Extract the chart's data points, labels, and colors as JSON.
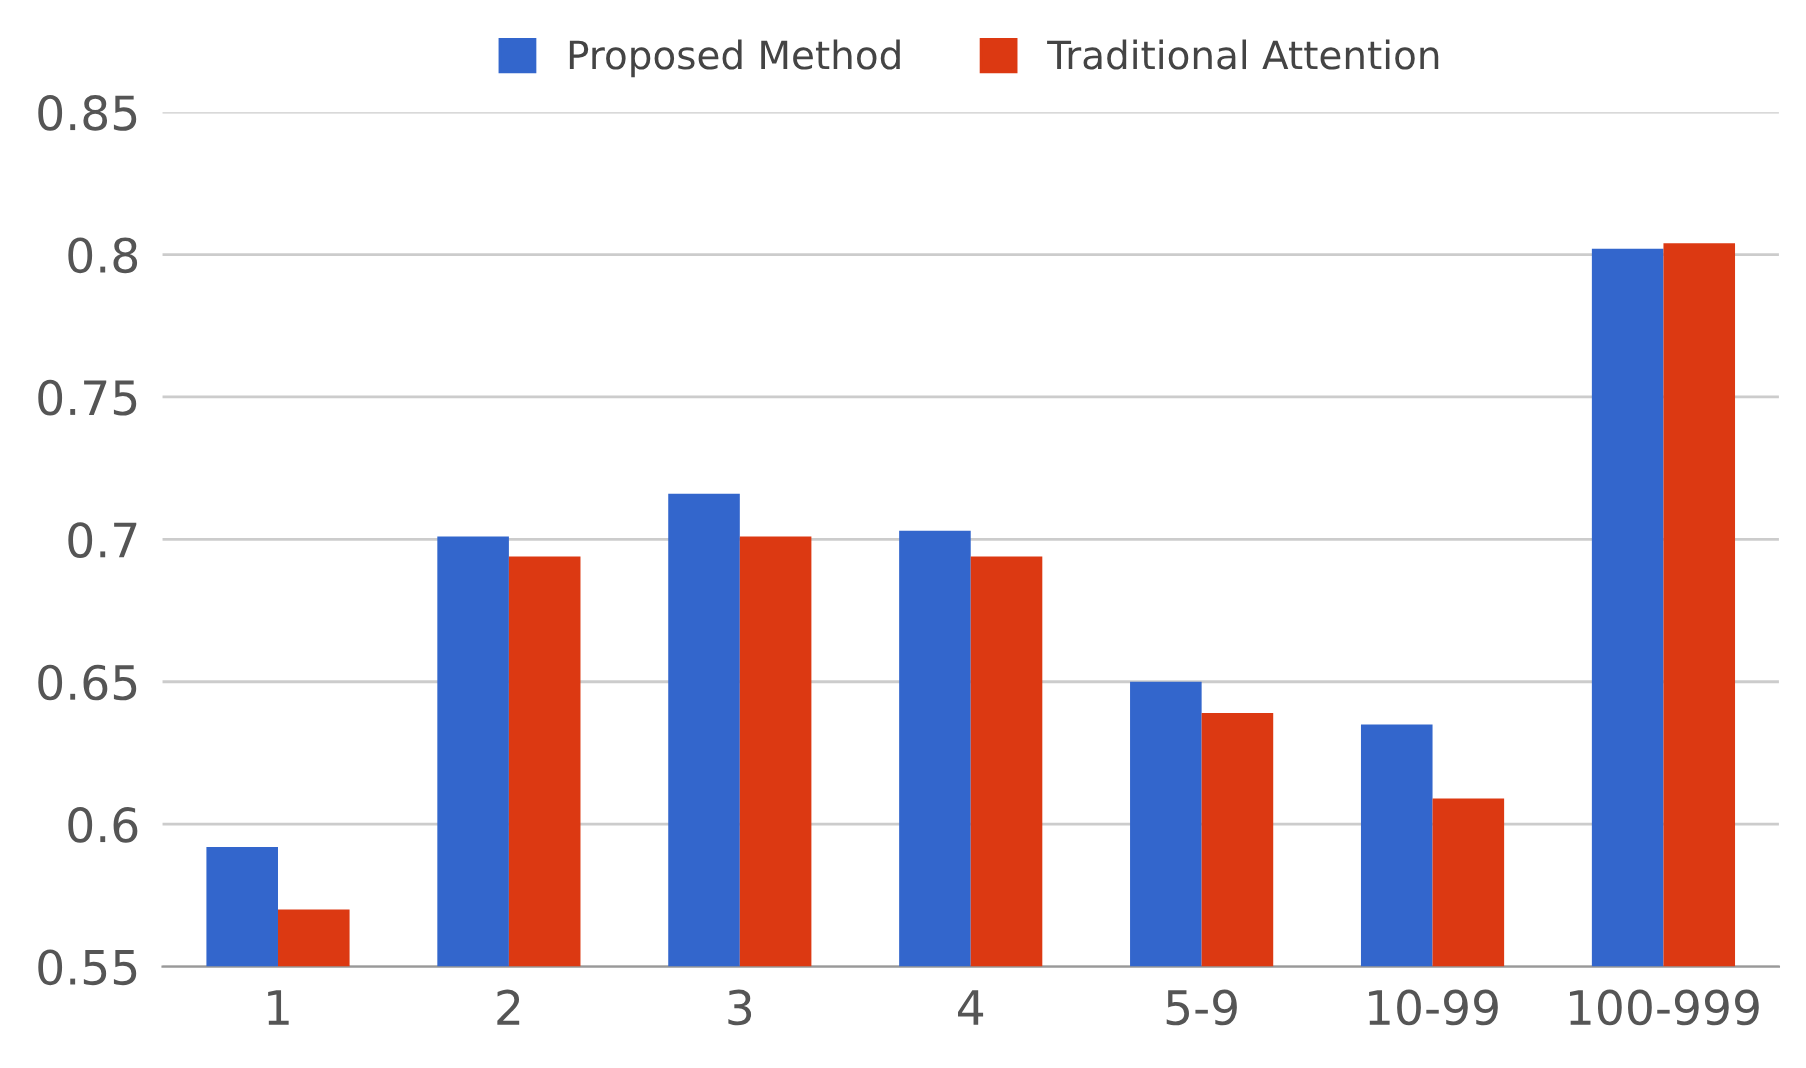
{
  "chart_data": {
    "type": "bar",
    "categories": [
      "1",
      "2",
      "3",
      "4",
      "5-9",
      "10-99",
      "100-999"
    ],
    "series": [
      {
        "name": "Proposed Method",
        "color": "#3366cc",
        "values": [
          0.592,
          0.701,
          0.716,
          0.703,
          0.65,
          0.635,
          0.802
        ]
      },
      {
        "name": "Traditional Attention",
        "color": "#dc3912",
        "values": [
          0.57,
          0.694,
          0.701,
          0.694,
          0.639,
          0.609,
          0.804
        ]
      }
    ],
    "ylim": [
      0.55,
      0.85
    ],
    "yticks": [
      0.55,
      0.6,
      0.65,
      0.7,
      0.75,
      0.8,
      0.85
    ],
    "grid": "y",
    "legend": "top"
  }
}
